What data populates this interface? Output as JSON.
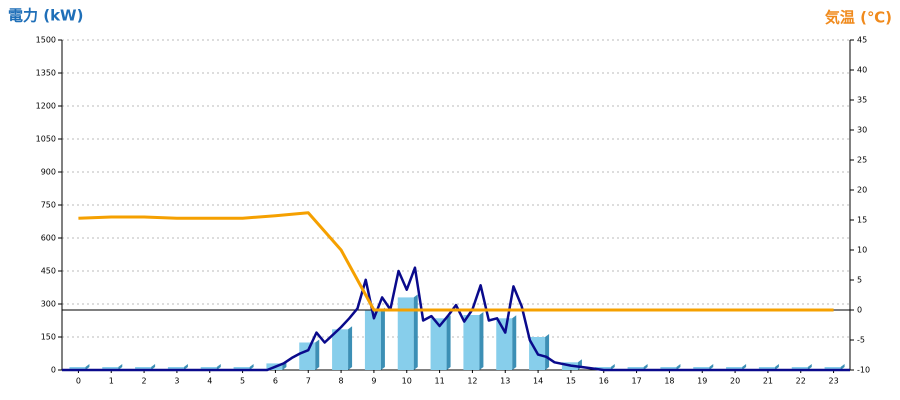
{
  "chart_data": {
    "type": "combo",
    "y_title": "電力 (kW)",
    "y2_title": "気温 (℃)",
    "xlim": [
      -0.5,
      23.5
    ],
    "xticks": [
      0,
      1,
      2,
      3,
      4,
      5,
      6,
      7,
      8,
      9,
      10,
      11,
      12,
      13,
      14,
      15,
      16,
      17,
      18,
      19,
      20,
      21,
      22,
      23
    ],
    "ylim": [
      0,
      1500
    ],
    "yticks": [
      0,
      150,
      300,
      450,
      600,
      750,
      900,
      1050,
      1200,
      1350,
      1500
    ],
    "y2lim": [
      -10,
      45
    ],
    "y2ticks": [
      -10,
      -5,
      0,
      5,
      10,
      15,
      20,
      25,
      30,
      35,
      40,
      45
    ],
    "grid": true,
    "y2_reference_line": 0,
    "series": [
      {
        "type": "bar",
        "color": "#87ceeb",
        "x": [
          0,
          1,
          2,
          3,
          4,
          5,
          6,
          7,
          8,
          9,
          10,
          11,
          12,
          13,
          14,
          15,
          16,
          17,
          18,
          19,
          20,
          21,
          22,
          23
        ],
        "values": [
          0,
          0,
          0,
          0,
          0,
          0,
          30,
          125,
          185,
          270,
          330,
          235,
          250,
          235,
          150,
          35,
          0,
          0,
          0,
          0,
          0,
          0,
          0,
          0
        ]
      },
      {
        "type": "line",
        "color": "#0a0a8c",
        "x": [
          -0.5,
          5.75,
          6,
          6.25,
          6.5,
          6.75,
          7,
          7.25,
          7.5,
          7.75,
          8,
          8.25,
          8.5,
          8.75,
          9,
          9.25,
          9.5,
          9.75,
          10,
          10.25,
          10.5,
          10.75,
          11,
          11.25,
          11.5,
          11.75,
          12,
          12.25,
          12.5,
          12.75,
          13,
          13.25,
          13.5,
          13.75,
          14,
          14.25,
          14.5,
          15,
          15.5,
          16,
          23.5
        ],
        "values": [
          0,
          0,
          15,
          30,
          55,
          75,
          90,
          170,
          125,
          160,
          195,
          235,
          280,
          410,
          235,
          330,
          275,
          450,
          365,
          465,
          225,
          245,
          200,
          245,
          295,
          220,
          275,
          385,
          225,
          235,
          170,
          380,
          290,
          135,
          70,
          60,
          35,
          20,
          10,
          0,
          0
        ]
      },
      {
        "type": "line",
        "axis": "y2",
        "color": "#f5a000",
        "x": [
          0,
          1,
          2,
          3,
          4,
          5,
          6,
          7,
          8,
          9,
          10,
          11,
          12,
          13,
          14,
          15,
          16,
          17,
          18,
          19,
          20,
          21,
          22,
          23
        ],
        "values": [
          15.3,
          15.5,
          15.5,
          15.3,
          15.3,
          15.3,
          15.7,
          16.2,
          10,
          0,
          0,
          0,
          0,
          0,
          0,
          0,
          0,
          0,
          0,
          0,
          0,
          0,
          0,
          0
        ]
      }
    ]
  }
}
